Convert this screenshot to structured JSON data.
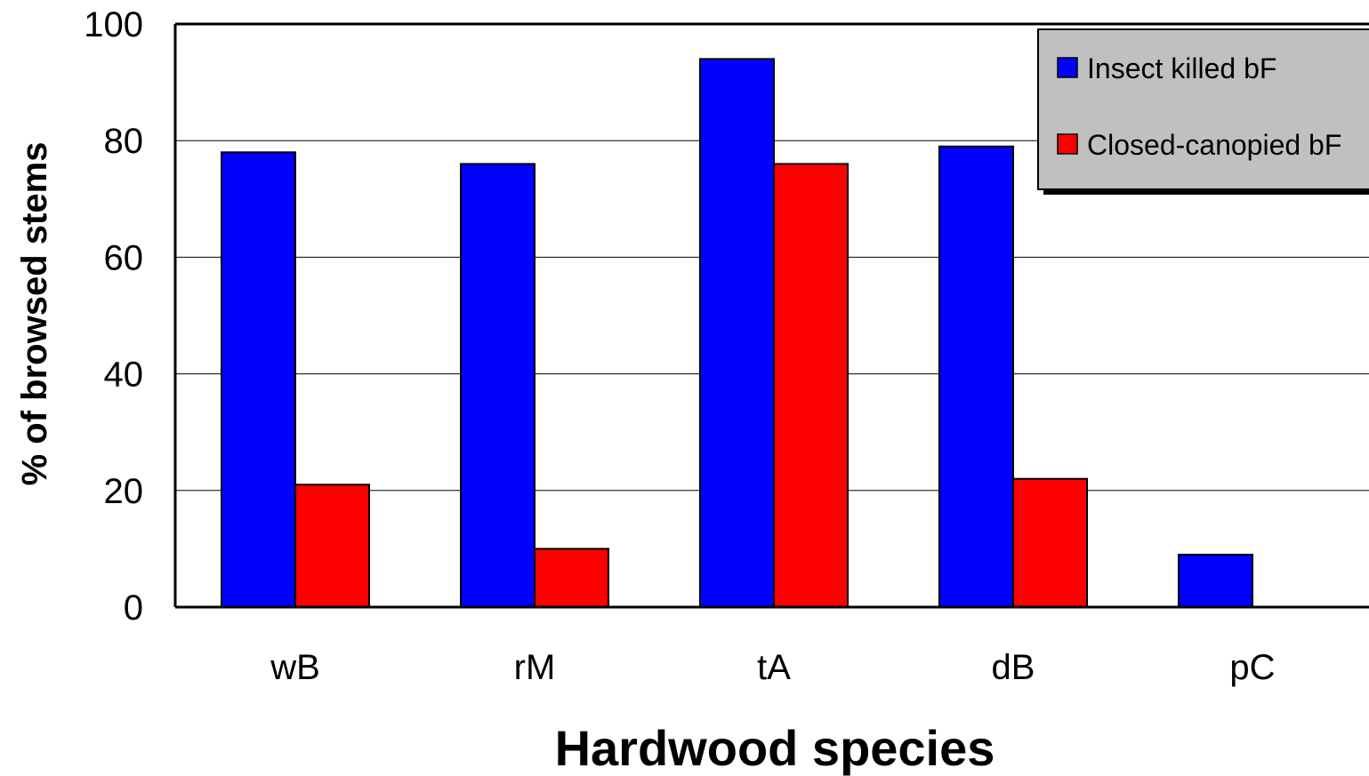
{
  "chart_data": {
    "type": "bar",
    "title": "",
    "xlabel": "Hardwood species",
    "ylabel": "% of browsed stems",
    "categories": [
      "wB",
      "rM",
      "tA",
      "dB",
      "pC"
    ],
    "series": [
      {
        "name": "Insect killed bF",
        "color": "#0000FF",
        "values": [
          78,
          76,
          94,
          79,
          9
        ]
      },
      {
        "name": "Closed-canopied bF",
        "color": "#FF0000",
        "values": [
          21,
          10,
          76,
          22,
          0
        ]
      }
    ],
    "ylim": [
      0,
      100
    ],
    "yticks": [
      "0",
      "20",
      "40",
      "60",
      "80",
      "100"
    ],
    "grid": true,
    "legend_position": "top-right",
    "legend_background": "#C0C0C0"
  }
}
